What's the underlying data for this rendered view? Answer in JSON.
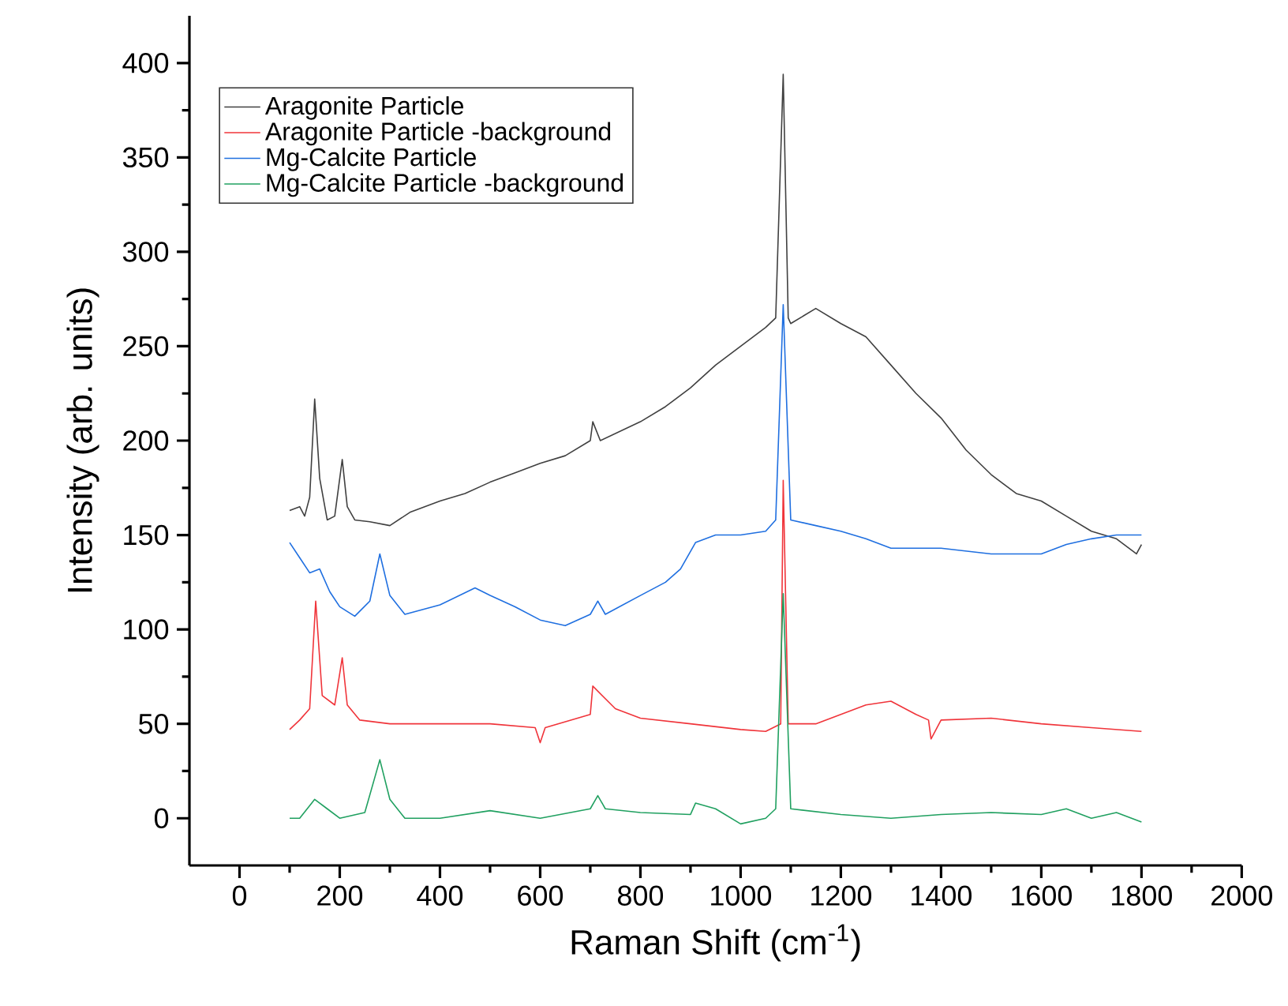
{
  "chart_data": {
    "type": "line",
    "xlabel": "Raman Shift (cm$^{-1}$)",
    "ylabel": "Intensity (arb. units)",
    "xlim": [
      -100,
      2000
    ],
    "ylim": [
      -25,
      425
    ],
    "xticks": [
      0,
      200,
      400,
      600,
      800,
      1000,
      1200,
      1400,
      1600,
      1800,
      2000
    ],
    "yticks": [
      0,
      50,
      100,
      150,
      200,
      250,
      300,
      350,
      400
    ],
    "legend": "top left",
    "series": [
      {
        "name": "Aragonite Particle",
        "color": "#404040",
        "x": [
          100,
          120,
          130,
          140,
          150,
          160,
          175,
          190,
          205,
          215,
          230,
          260,
          300,
          340,
          400,
          450,
          500,
          550,
          600,
          650,
          700,
          705,
          720,
          800,
          850,
          900,
          950,
          1000,
          1050,
          1070,
          1085,
          1095,
          1100,
          1150,
          1200,
          1250,
          1300,
          1350,
          1400,
          1450,
          1500,
          1550,
          1600,
          1650,
          1700,
          1750,
          1790,
          1800
        ],
        "values": [
          163,
          165,
          160,
          170,
          222,
          180,
          158,
          160,
          190,
          165,
          158,
          157,
          155,
          162,
          168,
          172,
          178,
          183,
          188,
          192,
          200,
          210,
          200,
          210,
          218,
          228,
          240,
          250,
          260,
          265,
          394,
          265,
          262,
          270,
          262,
          255,
          240,
          225,
          212,
          195,
          182,
          172,
          168,
          160,
          152,
          148,
          140,
          145
        ]
      },
      {
        "name": "Aragonite Particle -background",
        "color": "#f0343a",
        "x": [
          100,
          120,
          140,
          152,
          165,
          190,
          205,
          215,
          240,
          300,
          400,
          500,
          590,
          600,
          610,
          700,
          705,
          750,
          800,
          900,
          1000,
          1050,
          1080,
          1085,
          1095,
          1150,
          1200,
          1250,
          1300,
          1350,
          1375,
          1380,
          1400,
          1500,
          1600,
          1700,
          1800
        ],
        "values": [
          47,
          52,
          58,
          115,
          65,
          60,
          85,
          60,
          52,
          50,
          50,
          50,
          48,
          40,
          48,
          55,
          70,
          58,
          53,
          50,
          47,
          46,
          50,
          179,
          50,
          50,
          55,
          60,
          62,
          55,
          52,
          42,
          52,
          53,
          50,
          48,
          46
        ]
      },
      {
        "name": "Mg-Calcite Particle",
        "color": "#1f6fe0",
        "x": [
          100,
          120,
          140,
          160,
          180,
          200,
          230,
          260,
          280,
          300,
          330,
          400,
          470,
          500,
          550,
          600,
          650,
          700,
          715,
          730,
          800,
          850,
          880,
          910,
          950,
          1000,
          1050,
          1070,
          1085,
          1100,
          1150,
          1200,
          1250,
          1300,
          1400,
          1500,
          1600,
          1650,
          1700,
          1750,
          1800
        ],
        "values": [
          146,
          138,
          130,
          132,
          120,
          112,
          107,
          115,
          140,
          118,
          108,
          113,
          122,
          118,
          112,
          105,
          102,
          108,
          115,
          108,
          118,
          125,
          132,
          146,
          150,
          150,
          152,
          158,
          272,
          158,
          155,
          152,
          148,
          143,
          143,
          140,
          140,
          145,
          148,
          150,
          150
        ]
      },
      {
        "name": "Mg-Calcite Particle -background",
        "color": "#20a060",
        "x": [
          100,
          120,
          150,
          175,
          200,
          250,
          280,
          300,
          330,
          400,
          500,
          600,
          700,
          715,
          730,
          800,
          900,
          910,
          950,
          1000,
          1050,
          1070,
          1085,
          1100,
          1200,
          1300,
          1400,
          1500,
          1600,
          1650,
          1700,
          1750,
          1800
        ],
        "values": [
          0,
          0,
          10,
          5,
          0,
          3,
          31,
          10,
          0,
          0,
          4,
          0,
          5,
          12,
          5,
          3,
          2,
          8,
          5,
          -3,
          0,
          5,
          119,
          5,
          2,
          0,
          2,
          3,
          2,
          5,
          0,
          3,
          -2
        ]
      }
    ]
  }
}
